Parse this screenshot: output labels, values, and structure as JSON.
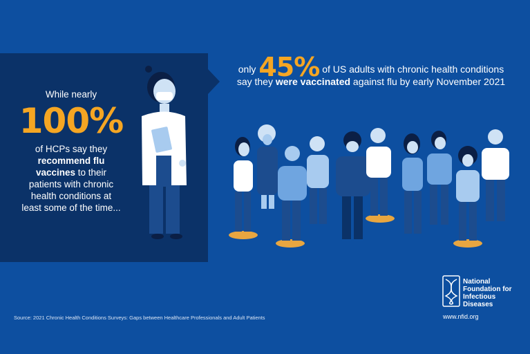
{
  "left": {
    "intro": "While nearly",
    "percent": "100%",
    "line1": "of HCPs say they",
    "bold_phrase_1": "recommend flu",
    "bold_phrase_2": "vaccines",
    "line2": " to their",
    "line3": "patients with chronic",
    "line4": "health conditions at",
    "line5": "least some of the time..."
  },
  "right": {
    "only": "only",
    "percent": "45%",
    "rest1": "of US adults with chronic health conditions",
    "say_they": "say they",
    "bold_phrase": "were vaccinated",
    "rest2": "against flu by early November 2021"
  },
  "source": "Source: 2021 Chronic Health Conditions Surveys: Gaps between Healthcare Professionals and Adult Patients",
  "logo": {
    "line1": "National",
    "line2": "Foundation for",
    "line3": "Infectious",
    "line4": "Diseases",
    "url": "www.nfid.org"
  },
  "colors": {
    "background": "#0d4fa0",
    "panel": "#0b3268",
    "accent": "#f5a623"
  }
}
